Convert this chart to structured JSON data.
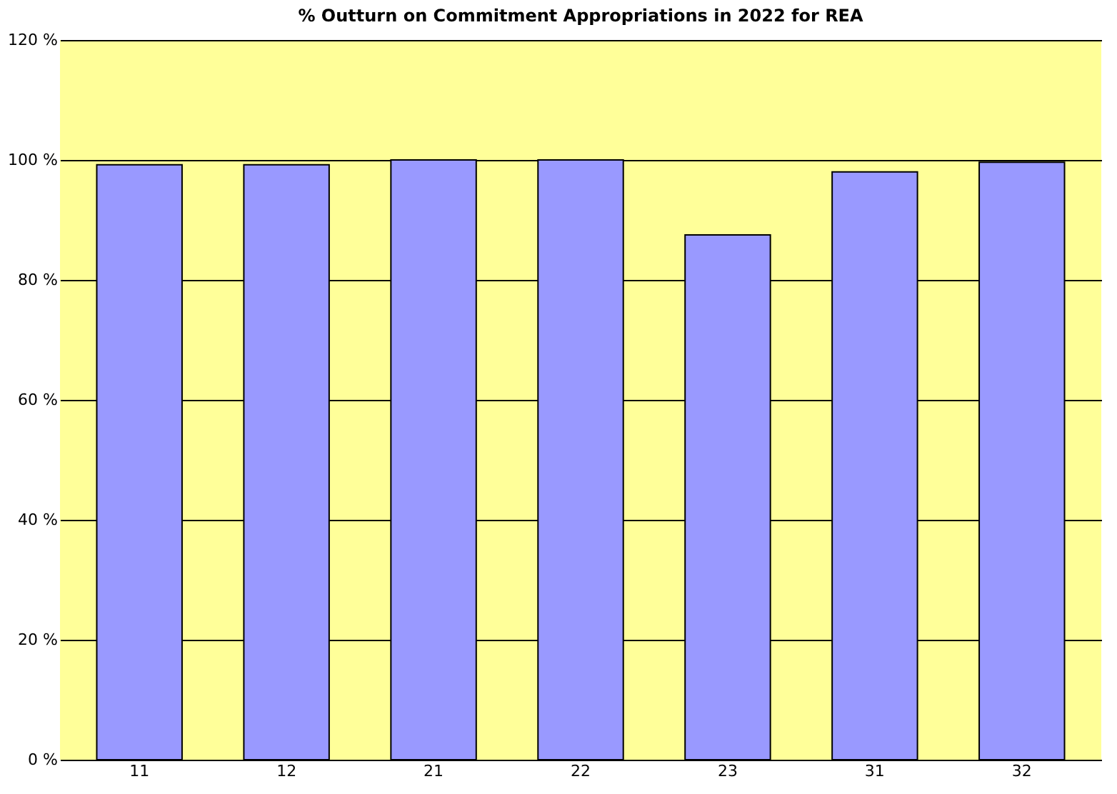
{
  "chart_data": {
    "type": "bar",
    "title": "% Outturn on Commitment Appropriations in 2022 for REA",
    "categories": [
      "11",
      "12",
      "21",
      "22",
      "23",
      "31",
      "32"
    ],
    "values": [
      99.2,
      99.2,
      100,
      100,
      87.5,
      98.0,
      99.6
    ],
    "color": "#9999ff",
    "ylim": [
      0,
      120
    ],
    "yticks": [
      {
        "value": 0,
        "label": "0 %"
      },
      {
        "value": 20,
        "label": "20 %"
      },
      {
        "value": 40,
        "label": "40 %"
      },
      {
        "value": 60,
        "label": "60 %"
      },
      {
        "value": 80,
        "label": "80 %"
      },
      {
        "value": 100,
        "label": "100 %"
      },
      {
        "value": 120,
        "label": "120 %"
      }
    ],
    "grid": "y"
  }
}
